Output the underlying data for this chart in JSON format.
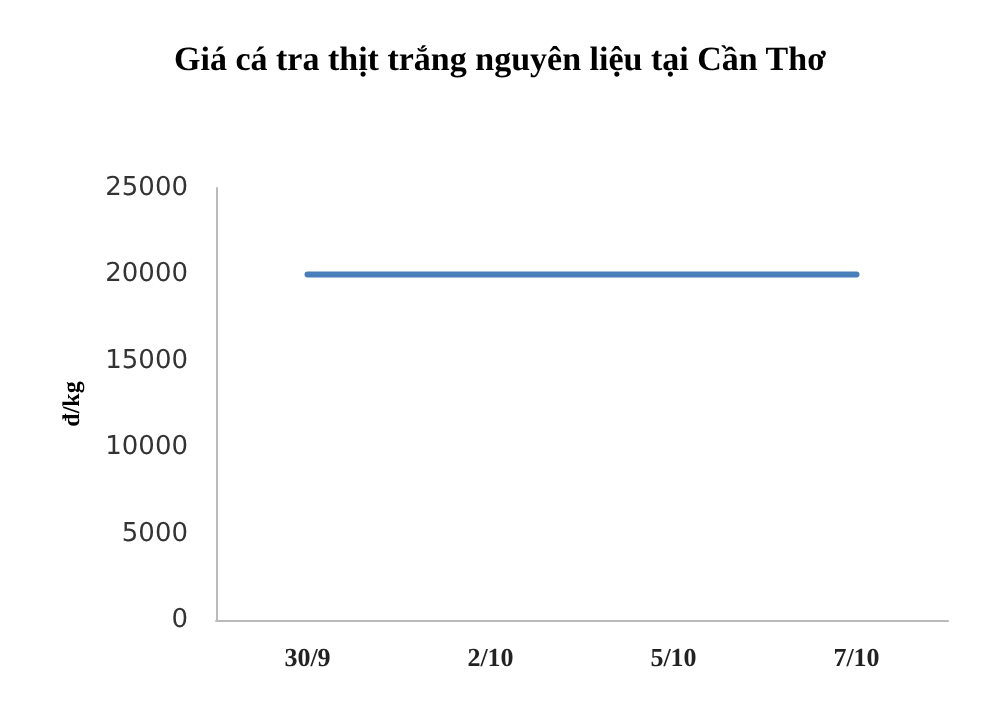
{
  "chart_data": {
    "type": "line",
    "title": "Giá cá tra thịt trắng nguyên liệu tại Cần Thơ",
    "ylabel": "đ/kg",
    "categories": [
      "30/9",
      "2/10",
      "5/10",
      "7/10"
    ],
    "series": [
      {
        "color": "#4a7ebb",
        "values": [
          20000,
          20000,
          20000,
          20000
        ]
      }
    ],
    "ylim": [
      0,
      25000
    ],
    "yticks": [
      0,
      5000,
      10000,
      15000,
      20000,
      25000
    ],
    "marker": "none"
  }
}
